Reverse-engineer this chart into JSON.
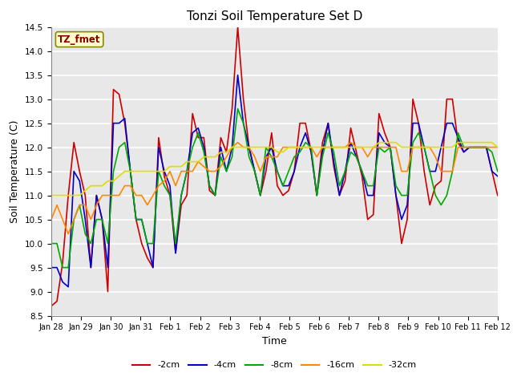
{
  "title": "Tonzi Soil Temperature Set D",
  "xlabel": "Time",
  "ylabel": "Soil Temperature (C)",
  "ylim": [
    8.5,
    14.5
  ],
  "annotation": "TZ_fmet",
  "fig_bg_color": "#ffffff",
  "plot_bg_color": "#e8e8e8",
  "series_labels": [
    "-2cm",
    "-4cm",
    "-8cm",
    "-16cm",
    "-32cm"
  ],
  "series_colors": [
    "#cc0000",
    "#0000cc",
    "#00aa00",
    "#ff8800",
    "#dddd00"
  ],
  "x_labels": [
    "Jan 28",
    "Jan 29",
    "Jan 30",
    "Jan 31",
    "Feb 1",
    "Feb 2",
    "Feb 3",
    "Feb 4",
    "Feb 5",
    "Feb 6",
    "Feb 7",
    "Feb 8",
    "Feb 9",
    "Feb 10",
    "Feb 11",
    "Feb 12"
  ],
  "data": {
    "neg2cm": [
      8.7,
      8.8,
      9.6,
      11.0,
      12.1,
      11.5,
      11.0,
      9.5,
      11.0,
      10.5,
      9.0,
      13.2,
      13.1,
      12.5,
      11.5,
      10.5,
      10.0,
      9.7,
      9.5,
      12.2,
      11.4,
      11.0,
      9.8,
      10.8,
      11.0,
      12.7,
      12.2,
      12.2,
      11.1,
      11.0,
      12.2,
      11.9,
      12.8,
      14.5,
      13.0,
      12.0,
      11.5,
      11.0,
      11.5,
      12.3,
      11.2,
      11.0,
      11.1,
      11.5,
      12.5,
      12.5,
      11.9,
      11.0,
      12.1,
      12.5,
      11.6,
      11.0,
      11.3,
      12.4,
      11.9,
      11.4,
      10.5,
      10.6,
      12.7,
      12.3,
      12.0,
      11.0,
      10.0,
      10.5,
      13.0,
      12.5,
      11.5,
      10.8,
      11.2,
      11.3,
      13.0,
      13.0,
      12.1,
      11.9,
      12.0,
      12.0,
      12.0,
      12.0,
      11.5,
      11.0
    ],
    "neg4cm": [
      9.5,
      9.5,
      9.2,
      9.1,
      11.5,
      11.3,
      10.5,
      9.5,
      11.0,
      10.5,
      9.5,
      12.5,
      12.5,
      12.6,
      11.5,
      10.5,
      10.5,
      10.0,
      9.5,
      12.0,
      11.5,
      11.2,
      9.8,
      11.0,
      11.5,
      12.3,
      12.4,
      12.0,
      11.2,
      11.0,
      12.0,
      11.5,
      12.0,
      13.5,
      12.5,
      12.0,
      11.5,
      11.0,
      11.8,
      12.0,
      11.5,
      11.2,
      11.2,
      11.5,
      12.0,
      12.3,
      11.9,
      11.0,
      11.9,
      12.5,
      11.7,
      11.0,
      11.5,
      12.1,
      11.8,
      11.5,
      11.0,
      11.0,
      12.3,
      12.1,
      12.0,
      11.0,
      10.5,
      10.8,
      12.5,
      12.5,
      12.0,
      11.5,
      11.5,
      12.0,
      12.5,
      12.5,
      12.2,
      11.9,
      12.0,
      12.0,
      12.0,
      12.0,
      11.5,
      11.4
    ],
    "neg8cm": [
      10.0,
      10.0,
      9.5,
      9.5,
      10.5,
      10.8,
      10.2,
      10.0,
      10.5,
      10.5,
      10.0,
      11.5,
      12.0,
      12.1,
      11.5,
      10.5,
      10.5,
      10.0,
      10.0,
      11.5,
      11.2,
      11.0,
      10.0,
      11.0,
      11.5,
      12.0,
      12.3,
      11.9,
      11.2,
      11.0,
      11.8,
      11.5,
      11.8,
      12.8,
      12.5,
      11.8,
      11.5,
      11.0,
      12.0,
      11.8,
      11.5,
      11.2,
      11.5,
      11.8,
      11.9,
      12.1,
      12.0,
      11.0,
      11.8,
      12.3,
      11.9,
      11.2,
      11.5,
      11.9,
      11.8,
      11.5,
      11.2,
      11.2,
      12.0,
      11.9,
      12.0,
      11.2,
      11.0,
      11.0,
      12.1,
      12.3,
      12.0,
      11.5,
      11.0,
      10.8,
      11.0,
      11.5,
      12.3,
      12.0,
      12.0,
      12.0,
      12.0,
      12.0,
      11.9,
      11.5
    ],
    "neg16cm": [
      10.5,
      10.8,
      10.5,
      10.2,
      10.5,
      10.8,
      10.8,
      10.5,
      10.8,
      11.0,
      11.0,
      11.0,
      11.0,
      11.2,
      11.2,
      11.0,
      11.0,
      10.8,
      11.0,
      11.2,
      11.3,
      11.5,
      11.2,
      11.5,
      11.5,
      11.5,
      11.7,
      11.6,
      11.5,
      11.5,
      11.6,
      11.8,
      12.0,
      12.1,
      12.0,
      12.0,
      11.8,
      11.5,
      11.8,
      11.8,
      11.8,
      12.0,
      12.0,
      12.0,
      12.0,
      12.0,
      12.0,
      11.8,
      12.0,
      12.0,
      12.0,
      12.0,
      12.0,
      12.1,
      12.0,
      12.0,
      11.8,
      12.0,
      12.0,
      12.0,
      12.0,
      12.0,
      11.5,
      11.5,
      12.0,
      12.0,
      12.0,
      12.0,
      11.8,
      11.5,
      11.5,
      11.5,
      12.0,
      12.0,
      12.0,
      12.0,
      12.0,
      12.0,
      12.0,
      12.0
    ],
    "neg32cm": [
      11.0,
      11.0,
      11.0,
      11.0,
      11.0,
      11.0,
      11.1,
      11.2,
      11.2,
      11.2,
      11.3,
      11.3,
      11.4,
      11.5,
      11.5,
      11.5,
      11.5,
      11.5,
      11.5,
      11.5,
      11.5,
      11.6,
      11.6,
      11.6,
      11.7,
      11.7,
      11.7,
      11.8,
      11.8,
      11.8,
      11.9,
      11.9,
      12.0,
      12.0,
      12.0,
      12.0,
      12.0,
      12.0,
      12.0,
      12.0,
      11.9,
      11.9,
      12.0,
      12.0,
      12.0,
      12.0,
      12.0,
      12.0,
      12.0,
      12.0,
      12.0,
      12.0,
      12.0,
      12.0,
      12.0,
      12.0,
      12.0,
      12.0,
      12.1,
      12.1,
      12.1,
      12.1,
      12.0,
      12.0,
      12.0,
      12.0,
      12.0,
      12.0,
      12.0,
      12.0,
      12.0,
      12.0,
      12.1,
      12.1,
      12.1,
      12.1,
      12.1,
      12.1,
      12.1,
      12.0
    ]
  }
}
